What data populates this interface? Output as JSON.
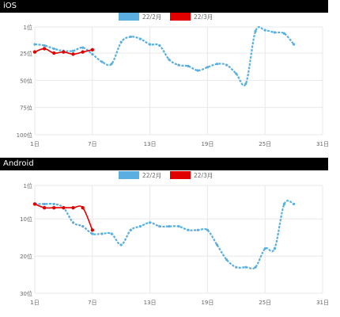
{
  "sections": [
    {
      "title": "iOS"
    },
    {
      "title": "Android"
    }
  ],
  "colors": {
    "series_feb": "#5aafe0",
    "series_mar": "#e00000",
    "grid": "#e8e8e8",
    "text": "#666666"
  },
  "chart_data": [
    {
      "type": "line",
      "title": "",
      "xlabel": "",
      "ylabel": "",
      "y_reversed": true,
      "legend_position": "top-center",
      "grid": true,
      "xlim": [
        1,
        31
      ],
      "ylim": [
        1,
        100
      ],
      "x_tick_labels": [
        "1日",
        "7日",
        "13日",
        "19日",
        "25日",
        "31日"
      ],
      "x_tick_values": [
        1,
        7,
        13,
        19,
        25,
        31
      ],
      "y_tick_labels": [
        "1位",
        "25位",
        "50位",
        "75位",
        "100位"
      ],
      "y_tick_values": [
        1,
        25,
        50,
        75,
        100
      ],
      "series": [
        {
          "name": "22/2月",
          "style": "dashed",
          "x": [
            1,
            2,
            3,
            4,
            5,
            6,
            7,
            8,
            9,
            10,
            11,
            12,
            13,
            14,
            15,
            16,
            17,
            18,
            19,
            20,
            21,
            22,
            23,
            24,
            25,
            26,
            27,
            28
          ],
          "y": [
            17,
            18,
            21,
            23,
            23,
            20,
            26,
            33,
            35,
            15,
            10,
            12,
            17,
            18,
            31,
            36,
            37,
            41,
            38,
            35,
            36,
            44,
            53,
            5,
            4,
            6,
            7,
            17
          ]
        },
        {
          "name": "22/3月",
          "style": "solid",
          "x": [
            1,
            2,
            3,
            4,
            5,
            6,
            7
          ],
          "y": [
            24,
            21,
            25,
            24,
            26,
            24,
            22
          ]
        }
      ]
    },
    {
      "type": "line",
      "title": "",
      "xlabel": "",
      "ylabel": "",
      "y_reversed": true,
      "legend_position": "top-center",
      "grid": true,
      "xlim": [
        1,
        31
      ],
      "ylim": [
        1,
        30
      ],
      "x_tick_labels": [
        "1日",
        "7日",
        "13日",
        "19日",
        "25日",
        "31日"
      ],
      "x_tick_values": [
        1,
        7,
        13,
        19,
        25,
        31
      ],
      "y_tick_labels": [
        "1位",
        "10位",
        "20位",
        "30位"
      ],
      "y_tick_values": [
        1,
        10,
        20,
        30
      ],
      "series": [
        {
          "name": "22/2月",
          "style": "dashed",
          "x": [
            1,
            2,
            3,
            4,
            5,
            6,
            7,
            8,
            9,
            10,
            11,
            12,
            13,
            14,
            15,
            16,
            17,
            18,
            19,
            20,
            21,
            22,
            23,
            24,
            25,
            26,
            27,
            28
          ],
          "y": [
            6,
            6,
            6,
            7,
            11,
            12,
            14,
            14,
            14,
            17,
            13,
            12,
            11,
            12,
            12,
            12,
            13,
            13,
            13,
            17,
            21,
            23,
            23,
            23,
            18,
            18,
            6,
            6
          ],
          "point_every": 1
        },
        {
          "name": "22/3月",
          "style": "solid",
          "x": [
            1,
            2,
            3,
            4,
            5,
            6,
            7
          ],
          "y": [
            6,
            7,
            7,
            7,
            7,
            7,
            13
          ]
        }
      ]
    }
  ]
}
